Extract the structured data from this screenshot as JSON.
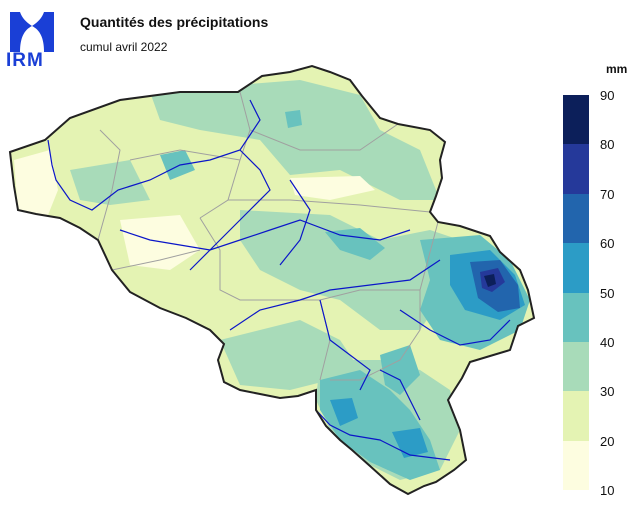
{
  "logo": {
    "text": "IRM"
  },
  "title": "Quantités des précipitations",
  "subtitle": "cumul avril 2022",
  "legend": {
    "unit": "mm",
    "ticks": [
      "90",
      "80",
      "70",
      "60",
      "50",
      "40",
      "30",
      "20",
      "10"
    ],
    "bins": [
      {
        "range": [
          80,
          90
        ],
        "color": "#0c1f5a"
      },
      {
        "range": [
          70,
          80
        ],
        "color": "#25399a"
      },
      {
        "range": [
          60,
          70
        ],
        "color": "#2265ad"
      },
      {
        "range": [
          50,
          60
        ],
        "color": "#2c9cc6"
      },
      {
        "range": [
          40,
          50
        ],
        "color": "#68c2be"
      },
      {
        "range": [
          30,
          40
        ],
        "color": "#a8dbb9"
      },
      {
        "range": [
          20,
          30
        ],
        "color": "#e4f3b3"
      },
      {
        "range": [
          10,
          20
        ],
        "color": "#fdfde0"
      }
    ]
  },
  "colors": {
    "country_border": "#222222",
    "province_border": "#a0a0a0",
    "rivers": "#0b16c8",
    "logo": "#1a3fd6"
  }
}
